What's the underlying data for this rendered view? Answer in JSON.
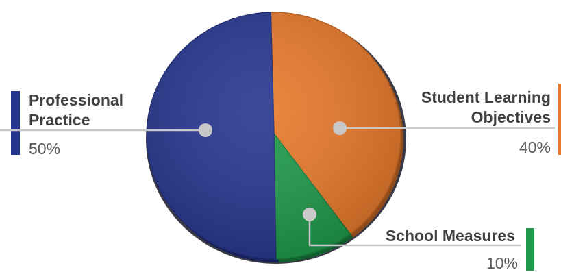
{
  "chart_data": {
    "type": "pie",
    "title": "",
    "slices": [
      {
        "key": "professional",
        "label_lines": [
          "Professional",
          "Practice"
        ],
        "percent_label": "50%",
        "value": 50,
        "color": "#25358f"
      },
      {
        "key": "slo",
        "label_lines": [
          "Student Learning",
          "Objectives"
        ],
        "percent_label": "40%",
        "value": 40,
        "color": "#e8792a"
      },
      {
        "key": "school",
        "label_lines": [
          "School Measures"
        ],
        "percent_label": "10%",
        "value": 10,
        "color": "#1d9a49"
      }
    ],
    "legend": "none",
    "grid": false
  }
}
